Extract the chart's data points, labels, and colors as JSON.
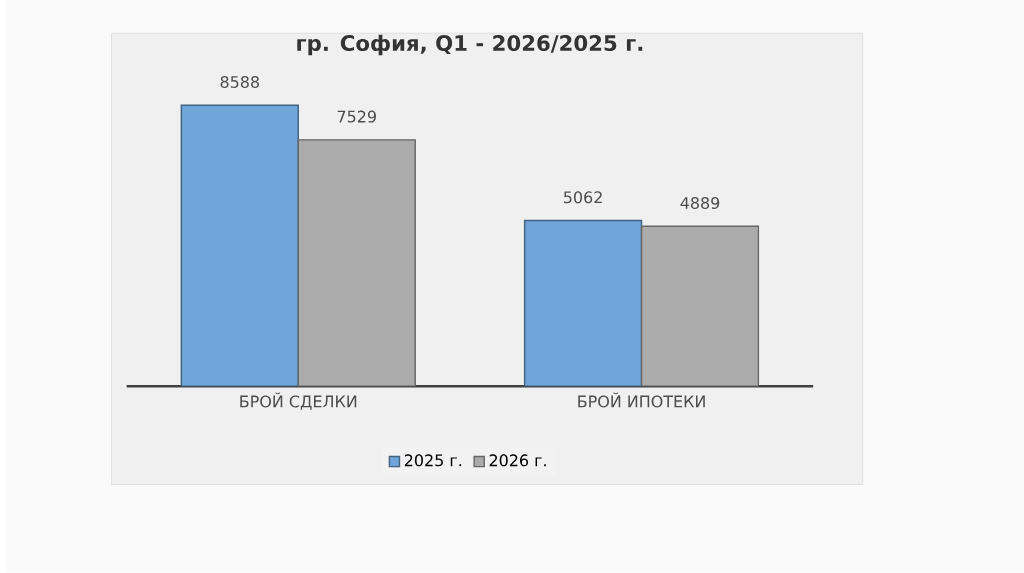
{
  "chart_data": {
    "type": "bar",
    "title": "гр. София, Q1 - 2026/2025 г.",
    "categories": [
      "БРОЙ СДЕЛКИ",
      "БРОЙ ИПОТЕКИ"
    ],
    "series": [
      {
        "name": "2025 г.",
        "color": "#6fa5d8",
        "values": [
          8588,
          5062
        ]
      },
      {
        "name": "2026 г.",
        "color": "#ababab",
        "values": [
          7529,
          4889
        ]
      }
    ],
    "legend": "bottom",
    "data_labels": true
  }
}
